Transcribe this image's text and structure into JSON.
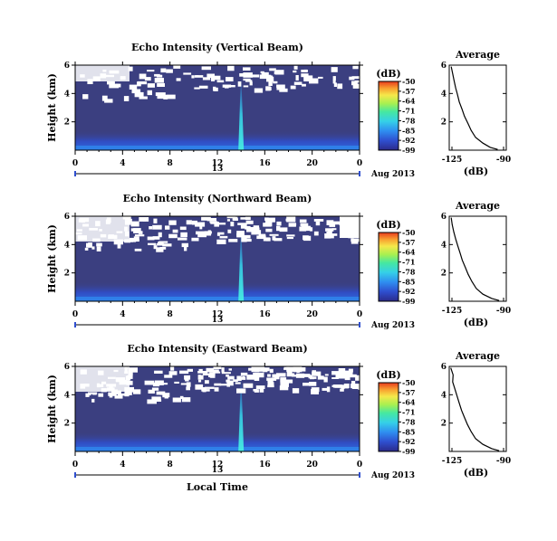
{
  "chart_data": [
    {
      "type": "heatmap",
      "title": "Echo Intensity (Vertical Beam)",
      "ylabel": "Height (km)",
      "x_ticks": [
        "0",
        "4",
        "8",
        "12",
        "16",
        "20",
        "0"
      ],
      "y_ticks": [
        "6",
        "4",
        "2"
      ],
      "xlim": [
        0,
        24
      ],
      "ylim": [
        0,
        6
      ],
      "date_label": "13",
      "date_suffix": "Aug 2013",
      "colorbar": {
        "label": "(dB)",
        "ticks": [
          "-50",
          "-57",
          "-64",
          "-71",
          "-78",
          "-85",
          "-92",
          "-99"
        ]
      },
      "profile": {
        "title": "Average",
        "xlabel": "(dB)",
        "x_ticks": [
          "-125",
          "-90"
        ],
        "y_ticks": [
          "6",
          "4",
          "2"
        ],
        "xlim": [
          -125,
          -90
        ],
        "ylim": [
          0,
          6
        ],
        "points": [
          [
            -125.5,
            5.9
          ],
          [
            -124.5,
            5.4
          ],
          [
            -123.5,
            4.9
          ],
          [
            -122.5,
            4.4
          ],
          [
            -121.2,
            3.9
          ],
          [
            -120,
            3.4
          ],
          [
            -118.2,
            2.9
          ],
          [
            -116.5,
            2.4
          ],
          [
            -114.2,
            1.9
          ],
          [
            -112,
            1.4
          ],
          [
            -109,
            0.9
          ],
          [
            -104,
            0.5
          ],
          [
            -99,
            0.2
          ],
          [
            -94,
            0.05
          ]
        ]
      }
    },
    {
      "type": "heatmap",
      "title": "Echo Intensity (Northward Beam)",
      "ylabel": "Height (km)",
      "x_ticks": [
        "0",
        "4",
        "8",
        "12",
        "16",
        "20",
        "0"
      ],
      "y_ticks": [
        "6",
        "4",
        "2"
      ],
      "xlim": [
        0,
        24
      ],
      "ylim": [
        0,
        6
      ],
      "date_label": "13",
      "date_suffix": "Aug 2013",
      "colorbar": {
        "label": "(dB)",
        "ticks": [
          "-50",
          "-57",
          "-64",
          "-71",
          "-78",
          "-85",
          "-92",
          "-99"
        ]
      },
      "profile": {
        "title": "Average",
        "xlabel": "(dB)",
        "x_ticks": [
          "-125",
          "-90"
        ],
        "y_ticks": [
          "6",
          "4",
          "2"
        ],
        "xlim": [
          -125,
          -90
        ],
        "ylim": [
          0,
          6
        ],
        "points": [
          [
            -125.5,
            5.9
          ],
          [
            -124.8,
            5.4
          ],
          [
            -123.8,
            4.9
          ],
          [
            -122.5,
            4.4
          ],
          [
            -121,
            3.9
          ],
          [
            -119.5,
            3.4
          ],
          [
            -118,
            2.9
          ],
          [
            -116,
            2.4
          ],
          [
            -114,
            1.9
          ],
          [
            -111.5,
            1.4
          ],
          [
            -108.5,
            0.9
          ],
          [
            -104,
            0.5
          ],
          [
            -98,
            0.2
          ],
          [
            -93,
            0.05
          ]
        ]
      }
    },
    {
      "type": "heatmap",
      "title": "Echo Intensity (Eastward Beam)",
      "ylabel": "Height (km)",
      "x_ticks": [
        "0",
        "4",
        "8",
        "12",
        "16",
        "20",
        "0"
      ],
      "y_ticks": [
        "6",
        "4",
        "2"
      ],
      "xlim": [
        0,
        24
      ],
      "ylim": [
        0,
        6
      ],
      "date_label": "13",
      "date_suffix": "Aug 2013",
      "xlabel": "Local Time",
      "colorbar": {
        "label": "(dB)",
        "ticks": [
          "-50",
          "-57",
          "-64",
          "-71",
          "-78",
          "-85",
          "-92",
          "-99"
        ]
      },
      "profile": {
        "title": "Average",
        "xlabel": "(dB)",
        "x_ticks": [
          "-125",
          "-90"
        ],
        "y_ticks": [
          "6",
          "4",
          "2"
        ],
        "xlim": [
          -125,
          -90
        ],
        "ylim": [
          0,
          6
        ],
        "points": [
          [
            -125.8,
            5.9
          ],
          [
            -124.2,
            5.4
          ],
          [
            -124.5,
            4.9
          ],
          [
            -123,
            4.4
          ],
          [
            -121.5,
            3.9
          ],
          [
            -120,
            3.4
          ],
          [
            -118.5,
            2.9
          ],
          [
            -116.5,
            2.4
          ],
          [
            -114.5,
            1.9
          ],
          [
            -112,
            1.4
          ],
          [
            -109,
            0.9
          ],
          [
            -104,
            0.5
          ],
          [
            -98,
            0.2
          ],
          [
            -93,
            0.05
          ]
        ]
      }
    }
  ],
  "colors": {
    "background_field": "#3b3f80",
    "colorbar_stops": [
      "#2b2a8a",
      "#2f4fcf",
      "#2f8ef0",
      "#35d0e8",
      "#46e8a0",
      "#a8f050",
      "#f5e84a",
      "#f8a030",
      "#e83a1e"
    ]
  }
}
